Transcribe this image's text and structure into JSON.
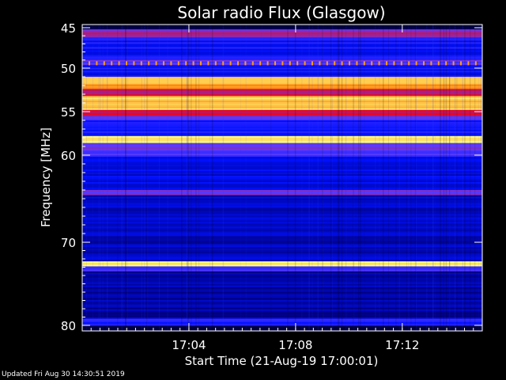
{
  "chart_data": {
    "type": "heatmap",
    "title": "Solar radio Flux (Glasgow)",
    "xlabel": "Start Time (21-Aug-19 17:00:01)",
    "ylabel": "Frequency [MHz]",
    "ylim": [
      45,
      80
    ],
    "xlim_minutes": [
      0,
      15
    ],
    "x_ticks": [
      {
        "minute": 4,
        "label": "17:04"
      },
      {
        "minute": 8,
        "label": "17:08"
      },
      {
        "minute": 12,
        "label": "17:12"
      }
    ],
    "y_ticks": [
      {
        "value": 45,
        "label": "45"
      },
      {
        "value": 50,
        "label": "50"
      },
      {
        "value": 55,
        "label": "55"
      },
      {
        "value": 60,
        "label": "60"
      },
      {
        "value": 70,
        "label": "70"
      },
      {
        "value": 80,
        "label": "80"
      }
    ],
    "bands": [
      {
        "from": 45,
        "to": 45.2,
        "level": 0.1
      },
      {
        "from": 45.2,
        "to": 46.2,
        "level": 0.55
      },
      {
        "from": 46.2,
        "to": 49.0,
        "level": 0.35
      },
      {
        "from": 49.0,
        "to": 49.6,
        "level": 0.5
      },
      {
        "from": 49.6,
        "to": 51.0,
        "level": 0.35
      },
      {
        "from": 51.0,
        "to": 52.4,
        "level": 0.9
      },
      {
        "from": 52.4,
        "to": 53.2,
        "level": 0.6
      },
      {
        "from": 53.2,
        "to": 54.8,
        "level": 0.93
      },
      {
        "from": 54.8,
        "to": 55.5,
        "level": 0.62
      },
      {
        "from": 55.5,
        "to": 56.0,
        "level": 0.5
      },
      {
        "from": 56.0,
        "to": 57.8,
        "level": 0.38
      },
      {
        "from": 57.8,
        "to": 58.6,
        "level": 0.95
      },
      {
        "from": 58.6,
        "to": 59.3,
        "level": 0.52
      },
      {
        "from": 59.3,
        "to": 60.2,
        "level": 0.48
      },
      {
        "from": 60.2,
        "to": 64.0,
        "level": 0.3
      },
      {
        "from": 64.0,
        "to": 64.6,
        "level": 0.55
      },
      {
        "from": 64.6,
        "to": 72.3,
        "level": 0.25
      },
      {
        "from": 72.3,
        "to": 72.9,
        "level": 1.0
      },
      {
        "from": 72.9,
        "to": 73.5,
        "level": 0.45
      },
      {
        "from": 73.5,
        "to": 79.2,
        "level": 0.22
      },
      {
        "from": 79.2,
        "to": 80.0,
        "level": 0.4
      }
    ],
    "colorscale": [
      "#000000",
      "#00007a",
      "#0010ff",
      "#5a3cff",
      "#ff0000",
      "#ff7a00",
      "#ffff80"
    ]
  },
  "footer": "Updated Fri Aug 30 14:30:51 2019"
}
